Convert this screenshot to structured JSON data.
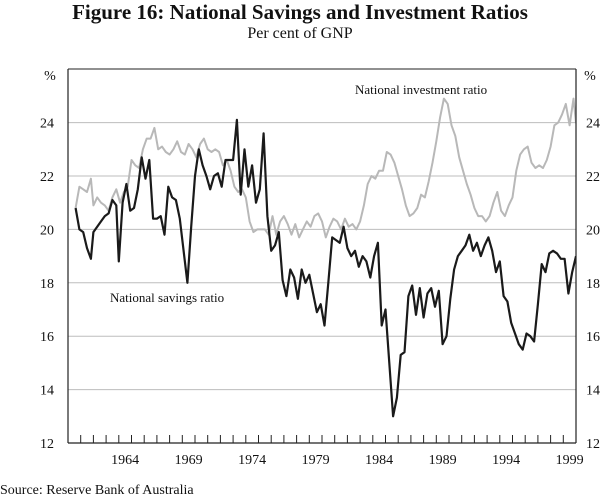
{
  "title": "Figure 16: National Savings and Investment Ratios",
  "subtitle": "Per cent of GNP",
  "source": "Source: Reserve Bank of Australia",
  "chart_data": {
    "type": "line",
    "title": "Figure 16: National Savings and Investment Ratios",
    "subtitle": "Per cent of GNP",
    "xlabel": "",
    "ylabel": "%",
    "ylabel_right": "%",
    "xlim": [
      1960,
      2000
    ],
    "ylim": [
      12,
      25.5
    ],
    "yticks": [
      12,
      14,
      16,
      18,
      20,
      22,
      24
    ],
    "xtick_labels": [
      "1964",
      "1969",
      "1974",
      "1979",
      "1984",
      "1989",
      "1994",
      "1999"
    ],
    "xtick_label_years": [
      1964,
      1969,
      1974,
      1979,
      1984,
      1989,
      1994,
      1999
    ],
    "minor_ticks": "yearly",
    "grid": true,
    "colors": {
      "savings": "#1a1a1a",
      "investment": "#b8b8b8",
      "grid": "#bdbdbd",
      "axis": "#222222"
    },
    "series": [
      {
        "name": "National investment ratio",
        "label_text": "National investment ratio",
        "color": "#b8b8b8",
        "points": [
          [
            1960.6,
            20.8
          ],
          [
            1960.9,
            21.6
          ],
          [
            1961.2,
            21.5
          ],
          [
            1961.5,
            21.4
          ],
          [
            1961.8,
            21.9
          ],
          [
            1962.0,
            20.9
          ],
          [
            1962.3,
            21.2
          ],
          [
            1962.6,
            21.0
          ],
          [
            1962.9,
            20.9
          ],
          [
            1963.2,
            20.7
          ],
          [
            1963.5,
            21.2
          ],
          [
            1963.8,
            21.5
          ],
          [
            1964.1,
            21.0
          ],
          [
            1964.4,
            21.4
          ],
          [
            1964.7,
            21.6
          ],
          [
            1965.0,
            22.6
          ],
          [
            1965.3,
            22.4
          ],
          [
            1965.6,
            22.3
          ],
          [
            1965.9,
            23.0
          ],
          [
            1966.2,
            23.4
          ],
          [
            1966.5,
            23.4
          ],
          [
            1966.8,
            23.8
          ],
          [
            1967.1,
            23.0
          ],
          [
            1967.4,
            23.1
          ],
          [
            1967.7,
            22.9
          ],
          [
            1968.0,
            22.8
          ],
          [
            1968.3,
            23.0
          ],
          [
            1968.6,
            23.3
          ],
          [
            1968.9,
            22.9
          ],
          [
            1969.2,
            22.8
          ],
          [
            1969.5,
            23.2
          ],
          [
            1969.8,
            23.0
          ],
          [
            1970.1,
            22.7
          ],
          [
            1970.4,
            23.2
          ],
          [
            1970.7,
            23.4
          ],
          [
            1971.0,
            23.0
          ],
          [
            1971.3,
            22.9
          ],
          [
            1971.6,
            23.0
          ],
          [
            1971.9,
            22.9
          ],
          [
            1972.2,
            22.4
          ],
          [
            1972.5,
            22.6
          ],
          [
            1972.8,
            22.2
          ],
          [
            1973.1,
            21.6
          ],
          [
            1973.4,
            21.4
          ],
          [
            1973.7,
            21.5
          ],
          [
            1974.0,
            21.2
          ],
          [
            1974.3,
            20.3
          ],
          [
            1974.6,
            19.9
          ],
          [
            1974.9,
            20.0
          ],
          [
            1975.2,
            20.0
          ],
          [
            1975.5,
            20.0
          ],
          [
            1975.8,
            19.8
          ],
          [
            1976.1,
            20.5
          ],
          [
            1976.4,
            19.8
          ],
          [
            1976.7,
            20.3
          ],
          [
            1977.0,
            20.5
          ],
          [
            1977.3,
            20.2
          ],
          [
            1977.6,
            19.8
          ],
          [
            1977.9,
            20.2
          ],
          [
            1978.2,
            19.7
          ],
          [
            1978.5,
            20.0
          ],
          [
            1978.8,
            20.3
          ],
          [
            1979.1,
            20.1
          ],
          [
            1979.4,
            20.5
          ],
          [
            1979.7,
            20.6
          ],
          [
            1980.0,
            20.3
          ],
          [
            1980.3,
            19.7
          ],
          [
            1980.6,
            20.1
          ],
          [
            1980.9,
            20.4
          ],
          [
            1981.2,
            20.3
          ],
          [
            1981.5,
            20.0
          ],
          [
            1981.8,
            20.4
          ],
          [
            1982.1,
            20.1
          ],
          [
            1982.4,
            20.2
          ],
          [
            1982.7,
            20.0
          ],
          [
            1983.0,
            20.3
          ],
          [
            1983.3,
            20.9
          ],
          [
            1983.6,
            21.7
          ],
          [
            1983.9,
            22.0
          ],
          [
            1984.2,
            21.9
          ],
          [
            1984.5,
            22.2
          ],
          [
            1984.8,
            22.2
          ],
          [
            1985.1,
            22.9
          ],
          [
            1985.4,
            22.8
          ],
          [
            1985.7,
            22.5
          ],
          [
            1986.0,
            22.0
          ],
          [
            1986.3,
            21.5
          ],
          [
            1986.6,
            20.9
          ],
          [
            1986.9,
            20.5
          ],
          [
            1987.2,
            20.6
          ],
          [
            1987.5,
            20.8
          ],
          [
            1987.8,
            21.3
          ],
          [
            1988.1,
            21.2
          ],
          [
            1988.4,
            21.8
          ],
          [
            1988.7,
            22.5
          ],
          [
            1989.0,
            23.3
          ],
          [
            1989.3,
            24.2
          ],
          [
            1989.6,
            24.9
          ],
          [
            1989.9,
            24.7
          ],
          [
            1990.2,
            23.9
          ],
          [
            1990.5,
            23.5
          ],
          [
            1990.8,
            22.7
          ],
          [
            1991.1,
            22.2
          ],
          [
            1991.4,
            21.7
          ],
          [
            1991.7,
            21.3
          ],
          [
            1992.0,
            20.8
          ],
          [
            1992.3,
            20.5
          ],
          [
            1992.6,
            20.5
          ],
          [
            1992.9,
            20.3
          ],
          [
            1993.2,
            20.5
          ],
          [
            1993.5,
            21.0
          ],
          [
            1993.8,
            21.4
          ],
          [
            1994.1,
            20.7
          ],
          [
            1994.4,
            20.5
          ],
          [
            1994.7,
            20.9
          ],
          [
            1995.0,
            21.2
          ],
          [
            1995.3,
            22.2
          ],
          [
            1995.6,
            22.8
          ],
          [
            1995.9,
            23.0
          ],
          [
            1996.2,
            23.1
          ],
          [
            1996.5,
            22.5
          ],
          [
            1996.8,
            22.3
          ],
          [
            1997.1,
            22.4
          ],
          [
            1997.4,
            22.3
          ],
          [
            1997.7,
            22.6
          ],
          [
            1998.0,
            23.1
          ],
          [
            1998.3,
            23.9
          ],
          [
            1998.6,
            24.0
          ],
          [
            1998.9,
            24.3
          ],
          [
            1999.2,
            24.7
          ],
          [
            1999.5,
            23.9
          ],
          [
            1999.8,
            24.9
          ],
          [
            2000.0,
            24.0
          ],
          [
            2000.2,
            24.8
          ],
          [
            2000.4,
            24.2
          ],
          [
            2000.6,
            24.9
          ],
          [
            2000.8,
            24.0
          ],
          [
            2001.0,
            25.0
          ]
        ]
      },
      {
        "name": "National savings ratio",
        "label_text": "National savings ratio",
        "color": "#1a1a1a",
        "points": [
          [
            1960.6,
            20.8
          ],
          [
            1960.9,
            20.0
          ],
          [
            1961.2,
            19.9
          ],
          [
            1961.5,
            19.3
          ],
          [
            1961.8,
            18.9
          ],
          [
            1962.0,
            19.9
          ],
          [
            1962.3,
            20.1
          ],
          [
            1962.6,
            20.3
          ],
          [
            1962.9,
            20.5
          ],
          [
            1963.2,
            20.6
          ],
          [
            1963.5,
            21.1
          ],
          [
            1963.8,
            20.9
          ],
          [
            1964.0,
            18.8
          ],
          [
            1964.3,
            21.0
          ],
          [
            1964.6,
            21.7
          ],
          [
            1964.9,
            20.7
          ],
          [
            1965.2,
            20.8
          ],
          [
            1965.5,
            21.5
          ],
          [
            1965.8,
            22.7
          ],
          [
            1966.1,
            21.9
          ],
          [
            1966.4,
            22.6
          ],
          [
            1966.7,
            20.4
          ],
          [
            1967.0,
            20.4
          ],
          [
            1967.3,
            20.5
          ],
          [
            1967.6,
            19.8
          ],
          [
            1967.9,
            21.6
          ],
          [
            1968.2,
            21.2
          ],
          [
            1968.5,
            21.1
          ],
          [
            1968.8,
            20.4
          ],
          [
            1969.1,
            19.2
          ],
          [
            1969.4,
            18.0
          ],
          [
            1969.7,
            20.1
          ],
          [
            1970.0,
            22.0
          ],
          [
            1970.3,
            23.0
          ],
          [
            1970.6,
            22.4
          ],
          [
            1970.9,
            22.0
          ],
          [
            1971.2,
            21.5
          ],
          [
            1971.5,
            22.0
          ],
          [
            1971.8,
            22.1
          ],
          [
            1972.1,
            21.6
          ],
          [
            1972.4,
            22.6
          ],
          [
            1972.7,
            22.6
          ],
          [
            1973.0,
            22.6
          ],
          [
            1973.3,
            24.1
          ],
          [
            1973.6,
            21.3
          ],
          [
            1973.9,
            23.0
          ],
          [
            1974.2,
            21.6
          ],
          [
            1974.5,
            22.4
          ],
          [
            1974.8,
            21.0
          ],
          [
            1975.1,
            21.5
          ],
          [
            1975.4,
            23.6
          ],
          [
            1975.7,
            20.5
          ],
          [
            1976.0,
            19.2
          ],
          [
            1976.3,
            19.4
          ],
          [
            1976.6,
            19.9
          ],
          [
            1976.9,
            18.1
          ],
          [
            1977.2,
            17.5
          ],
          [
            1977.5,
            18.5
          ],
          [
            1977.8,
            18.2
          ],
          [
            1978.1,
            17.4
          ],
          [
            1978.4,
            18.5
          ],
          [
            1978.7,
            18.0
          ],
          [
            1979.0,
            18.3
          ],
          [
            1979.3,
            17.6
          ],
          [
            1979.6,
            16.9
          ],
          [
            1979.9,
            17.2
          ],
          [
            1980.2,
            16.4
          ],
          [
            1980.5,
            18.0
          ],
          [
            1980.8,
            19.7
          ],
          [
            1981.1,
            19.6
          ],
          [
            1981.4,
            19.5
          ],
          [
            1981.7,
            20.1
          ],
          [
            1982.0,
            19.3
          ],
          [
            1982.3,
            19.0
          ],
          [
            1982.6,
            19.2
          ],
          [
            1982.9,
            18.6
          ],
          [
            1983.2,
            19.0
          ],
          [
            1983.5,
            18.8
          ],
          [
            1983.8,
            18.2
          ],
          [
            1984.1,
            19.0
          ],
          [
            1984.4,
            19.5
          ],
          [
            1984.7,
            16.4
          ],
          [
            1985.0,
            17.0
          ],
          [
            1985.3,
            15.0
          ],
          [
            1985.6,
            13.0
          ],
          [
            1985.9,
            13.7
          ],
          [
            1986.2,
            15.3
          ],
          [
            1986.5,
            15.4
          ],
          [
            1986.8,
            17.5
          ],
          [
            1987.1,
            17.9
          ],
          [
            1987.4,
            16.8
          ],
          [
            1987.7,
            17.8
          ],
          [
            1988.0,
            16.7
          ],
          [
            1988.3,
            17.6
          ],
          [
            1988.6,
            17.8
          ],
          [
            1988.9,
            17.1
          ],
          [
            1989.2,
            17.7
          ],
          [
            1989.5,
            15.7
          ],
          [
            1989.8,
            16.0
          ],
          [
            1990.1,
            17.4
          ],
          [
            1990.4,
            18.5
          ],
          [
            1990.7,
            19.0
          ],
          [
            1991.0,
            19.2
          ],
          [
            1991.3,
            19.4
          ],
          [
            1991.6,
            19.8
          ],
          [
            1991.9,
            19.2
          ],
          [
            1992.2,
            19.5
          ],
          [
            1992.5,
            19.0
          ],
          [
            1992.8,
            19.4
          ],
          [
            1993.1,
            19.7
          ],
          [
            1993.4,
            19.2
          ],
          [
            1993.7,
            18.4
          ],
          [
            1994.0,
            18.8
          ],
          [
            1994.3,
            17.5
          ],
          [
            1994.6,
            17.3
          ],
          [
            1994.9,
            16.5
          ],
          [
            1995.2,
            16.1
          ],
          [
            1995.5,
            15.7
          ],
          [
            1995.8,
            15.5
          ],
          [
            1996.1,
            16.1
          ],
          [
            1996.4,
            16.0
          ],
          [
            1996.7,
            15.8
          ],
          [
            1997.0,
            17.2
          ],
          [
            1997.3,
            18.7
          ],
          [
            1997.6,
            18.4
          ],
          [
            1997.9,
            19.1
          ],
          [
            1998.2,
            19.2
          ],
          [
            1998.5,
            19.1
          ],
          [
            1998.8,
            18.9
          ],
          [
            1999.1,
            18.9
          ],
          [
            1999.4,
            17.6
          ],
          [
            1999.7,
            18.4
          ],
          [
            2000.0,
            19.0
          ]
        ]
      }
    ]
  }
}
